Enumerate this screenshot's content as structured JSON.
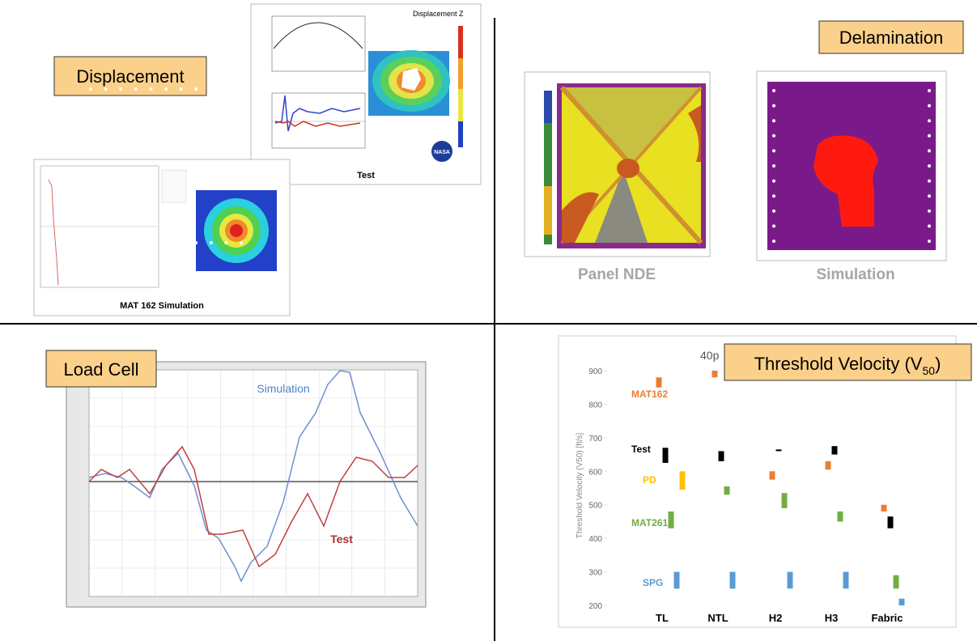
{
  "displacement": {
    "label": "Displacement",
    "test_title": "Displacement Z",
    "test_caption": "Test",
    "sim_caption": "MAT 162 Simulation",
    "logo": "NASA"
  },
  "delamination": {
    "label": "Delamination",
    "nde_caption": "Panel NDE",
    "sim_caption": "Simulation"
  },
  "load_cell": {
    "label": "Load Cell",
    "simulation": "Simulation",
    "test": "Test"
  },
  "chart_data": {
    "type": "range_bar",
    "title": "Threshold Velocity (V",
    "title_sub": "50",
    "title_end": ")",
    "subtitle": "40p",
    "y_label": "Threshold Velocity (V50) [ft/s]",
    "categories": [
      "TL",
      "NTL",
      "H2",
      "H3",
      "Fabric"
    ],
    "ylim": [
      200,
      900
    ],
    "yticks": [
      200,
      300,
      400,
      500,
      600,
      700,
      800,
      900
    ],
    "series": [
      {
        "name": "MAT162",
        "color": "#ed7d31",
        "values": [
          [
            850,
            880
          ],
          [
            880,
            900
          ],
          [
            575,
            600
          ],
          [
            605,
            630
          ],
          [
            480,
            500
          ]
        ]
      },
      {
        "name": "Test",
        "color": "#000000",
        "values": [
          [
            625,
            670
          ],
          [
            630,
            660
          ],
          [
            660,
            665
          ],
          [
            650,
            675
          ],
          [
            430,
            465
          ]
        ]
      },
      {
        "name": "PD",
        "color": "#ffc000",
        "values": [
          [
            545,
            600
          ],
          null,
          null,
          null,
          null
        ]
      },
      {
        "name": "MAT261",
        "color": "#70ad47",
        "values": [
          [
            430,
            480
          ],
          [
            530,
            555
          ],
          [
            490,
            535
          ],
          [
            450,
            480
          ],
          [
            250,
            290
          ]
        ]
      },
      {
        "name": "SPG",
        "color": "#5b9bd5",
        "values": [
          [
            250,
            300
          ],
          [
            250,
            300
          ],
          [
            250,
            300
          ],
          [
            250,
            300
          ],
          [
            200,
            220
          ]
        ]
      }
    ]
  }
}
